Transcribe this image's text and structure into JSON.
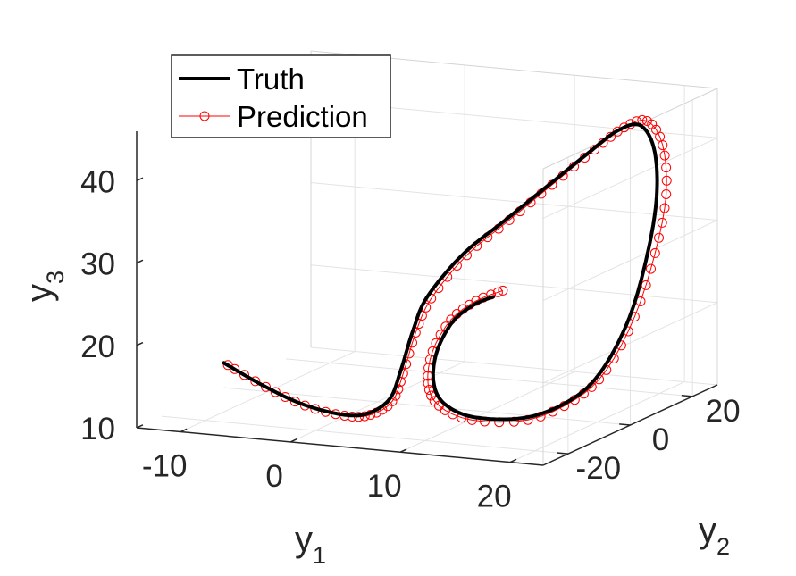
{
  "chart_data": {
    "type": "line",
    "projection": "3d",
    "axes": {
      "x": {
        "label_base": "y",
        "label_sub": "1",
        "ticks": [
          "-10",
          "0",
          "10",
          "20"
        ],
        "range": [
          -14,
          23
        ]
      },
      "y": {
        "label_base": "y",
        "label_sub": "2",
        "ticks": [
          "-20",
          "0",
          "20"
        ],
        "range": [
          -28,
          28
        ]
      },
      "z": {
        "label_base": "y",
        "label_sub": "3",
        "ticks": [
          "10",
          "20",
          "30",
          "40"
        ],
        "range": [
          10,
          46
        ]
      }
    },
    "grid": true,
    "legend": {
      "placement": "top-left",
      "entries": [
        "Truth",
        "Prediction"
      ]
    },
    "series": [
      {
        "name": "Truth",
        "color": "#000000",
        "style": "solid",
        "points": [
          [
            -14.0,
            0.0,
            13.0
          ],
          [
            -10.0,
            -1.5,
            11.0
          ],
          [
            -6.0,
            -3.0,
            9.5
          ],
          [
            -2.0,
            -4.5,
            9.0
          ],
          [
            0.5,
            -5.0,
            9.5
          ],
          [
            2.5,
            -5.0,
            11.5
          ],
          [
            3.5,
            -5.0,
            15.0
          ],
          [
            4.5,
            -4.5,
            20.0
          ],
          [
            5.5,
            -3.5,
            24.0
          ],
          [
            8.0,
            -1.0,
            29.0
          ],
          [
            11.0,
            2.0,
            33.0
          ],
          [
            14.0,
            5.0,
            37.0
          ],
          [
            17.0,
            8.0,
            41.0
          ],
          [
            19.0,
            10.0,
            43.5
          ],
          [
            20.5,
            12.0,
            44.0
          ],
          [
            21.5,
            13.0,
            41.0
          ],
          [
            22.0,
            12.0,
            35.5
          ],
          [
            22.0,
            9.0,
            29.0
          ],
          [
            21.5,
            5.0,
            22.0
          ],
          [
            20.5,
            0.0,
            16.5
          ],
          [
            19.0,
            -4.0,
            13.5
          ],
          [
            16.0,
            -8.0,
            11.5
          ],
          [
            12.0,
            -11.0,
            11.5
          ],
          [
            9.5,
            -12.0,
            13.0
          ],
          [
            8.5,
            -12.0,
            15.5
          ],
          [
            8.5,
            -11.0,
            19.0
          ],
          [
            9.5,
            -9.5,
            22.5
          ],
          [
            11.0,
            -8.0,
            24.5
          ],
          [
            12.5,
            -7.0,
            25.5
          ]
        ]
      },
      {
        "name": "Prediction",
        "color": "#ff0000",
        "style": "solid-circle-markers",
        "points": [
          [
            -13.6,
            -0.1,
            12.8
          ],
          [
            -9.7,
            -1.7,
            10.9
          ],
          [
            -5.7,
            -3.2,
            9.4
          ],
          [
            -1.7,
            -4.6,
            8.9
          ],
          [
            0.8,
            -5.1,
            9.4
          ],
          [
            2.8,
            -5.2,
            11.3
          ],
          [
            3.8,
            -5.2,
            14.8
          ],
          [
            4.8,
            -4.7,
            19.8
          ],
          [
            5.9,
            -3.6,
            23.9
          ],
          [
            8.4,
            -1.0,
            29.0
          ],
          [
            11.4,
            2.1,
            33.1
          ],
          [
            14.4,
            5.2,
            37.2
          ],
          [
            17.4,
            8.3,
            41.3
          ],
          [
            19.5,
            10.4,
            43.9
          ],
          [
            21.0,
            12.5,
            44.5
          ],
          [
            22.1,
            13.6,
            41.5
          ],
          [
            22.7,
            12.6,
            35.8
          ],
          [
            22.6,
            9.4,
            29.2
          ],
          [
            21.9,
            5.3,
            22.1
          ],
          [
            20.8,
            0.1,
            16.4
          ],
          [
            19.1,
            -4.1,
            13.3
          ],
          [
            16.0,
            -8.2,
            11.2
          ],
          [
            11.8,
            -11.3,
            11.2
          ],
          [
            9.1,
            -12.4,
            12.8
          ],
          [
            8.1,
            -12.4,
            15.4
          ],
          [
            8.2,
            -11.3,
            19.1
          ],
          [
            9.4,
            -9.6,
            22.8
          ],
          [
            11.2,
            -7.9,
            25.0
          ],
          [
            13.3,
            -6.7,
            26.3
          ]
        ]
      }
    ]
  }
}
